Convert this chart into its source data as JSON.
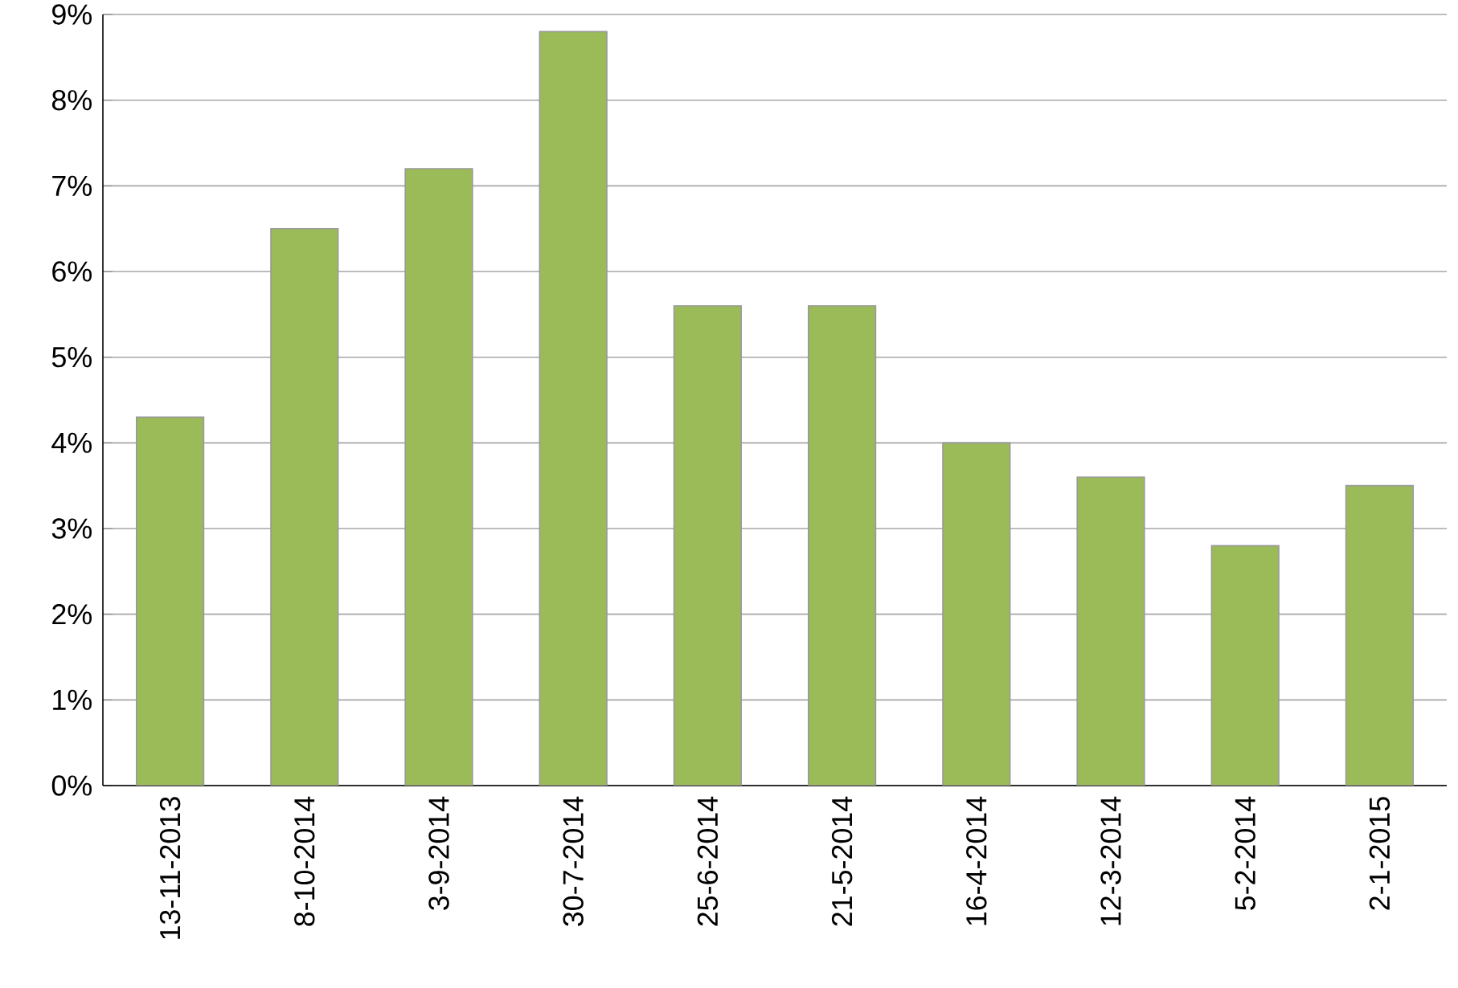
{
  "chart_data": {
    "type": "bar",
    "categories": [
      "13-11-2013",
      "8-10-2014",
      "3-9-2014",
      "30-7-2014",
      "25-6-2014",
      "21-5-2014",
      "16-4-2014",
      "12-3-2014",
      "5-2-2014",
      "2-1-2015"
    ],
    "values": [
      4.3,
      6.5,
      7.2,
      8.8,
      5.6,
      5.6,
      4.0,
      3.6,
      2.8,
      3.5
    ],
    "color": "#9bbb59",
    "ylim": [
      0,
      9
    ],
    "yticks": [
      {
        "value": 0,
        "label": "0%"
      },
      {
        "value": 1,
        "label": "1%"
      },
      {
        "value": 2,
        "label": "2%"
      },
      {
        "value": 3,
        "label": "3%"
      },
      {
        "value": 4,
        "label": "4%"
      },
      {
        "value": 5,
        "label": "5%"
      },
      {
        "value": 6,
        "label": "6%"
      },
      {
        "value": 7,
        "label": "7%"
      },
      {
        "value": 8,
        "label": "8%"
      },
      {
        "value": 9,
        "label": "9%"
      }
    ],
    "grid": "y"
  }
}
